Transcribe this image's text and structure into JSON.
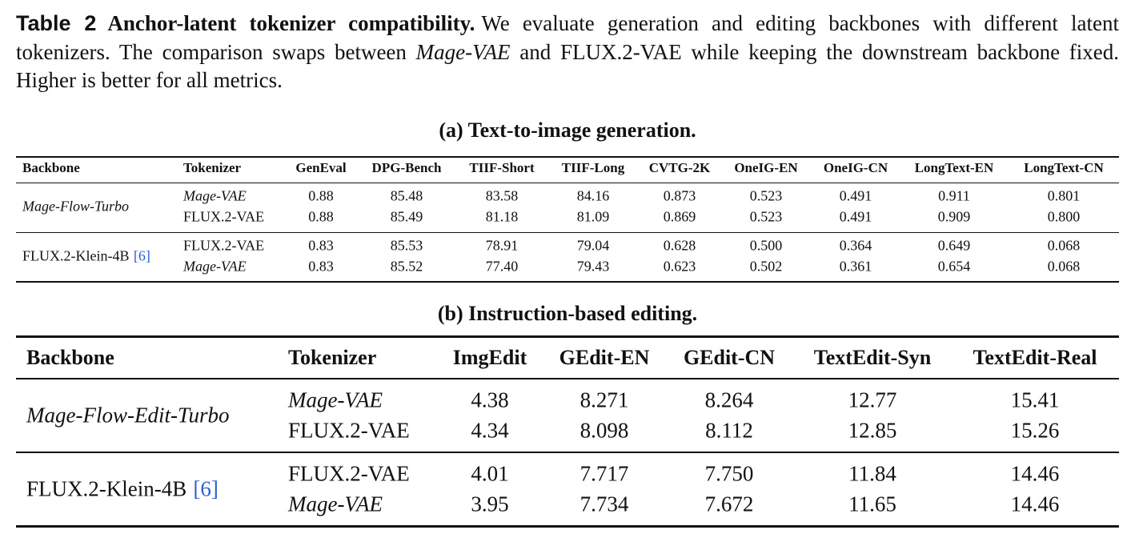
{
  "caption": {
    "label": "Table 2",
    "title": "Anchor-latent tokenizer compatibility.",
    "parts": [
      {
        "text": "We evaluate generation and editing backbones with different latent tokenizers. The comparison swaps between ",
        "italic": false
      },
      {
        "text": "Mage-VAE",
        "italic": true
      },
      {
        "text": " and FLUX.2-VAE while keeping the downstream backbone fixed. Higher is better for all metrics.",
        "italic": false
      }
    ]
  },
  "table_a": {
    "title": "(a) Text-to-image generation.",
    "header": [
      "Backbone",
      "Tokenizer",
      "GenEval",
      "DPG-Bench",
      "TIIF-Short",
      "TIIF-Long",
      "CVTG-2K",
      "OneIG-EN",
      "OneIG-CN",
      "LongText-EN",
      "LongText-CN"
    ],
    "groups": [
      {
        "backbone": "Mage-Flow-Turbo",
        "italic": true,
        "rows": [
          {
            "tokenizer": "Mage-VAE",
            "italic": true,
            "values": [
              "0.88",
              "85.48",
              "83.58",
              "84.16",
              "0.873",
              "0.523",
              "0.491",
              "0.911",
              "0.801"
            ]
          },
          {
            "tokenizer": "FLUX.2-VAE",
            "italic": false,
            "values": [
              "0.88",
              "85.49",
              "81.18",
              "81.09",
              "0.869",
              "0.523",
              "0.491",
              "0.909",
              "0.800"
            ]
          }
        ]
      },
      {
        "backbone": "FLUX.2-Klein-4B",
        "cite": "[6]",
        "italic": false,
        "rows": [
          {
            "tokenizer": "FLUX.2-VAE",
            "italic": false,
            "values": [
              "0.83",
              "85.53",
              "78.91",
              "79.04",
              "0.628",
              "0.500",
              "0.364",
              "0.649",
              "0.068"
            ]
          },
          {
            "tokenizer": "Mage-VAE",
            "italic": true,
            "values": [
              "0.83",
              "85.52",
              "77.40",
              "79.43",
              "0.623",
              "0.502",
              "0.361",
              "0.654",
              "0.068"
            ]
          }
        ]
      }
    ]
  },
  "table_b": {
    "title": "(b) Instruction-based editing.",
    "header": [
      "Backbone",
      "Tokenizer",
      "ImgEdit",
      "GEdit-EN",
      "GEdit-CN",
      "TextEdit-Syn",
      "TextEdit-Real"
    ],
    "groups": [
      {
        "backbone": "Mage-Flow-Edit-Turbo",
        "italic": true,
        "rows": [
          {
            "tokenizer": "Mage-VAE",
            "italic": true,
            "values": [
              "4.38",
              "8.271",
              "8.264",
              "12.77",
              "15.41"
            ]
          },
          {
            "tokenizer": "FLUX.2-VAE",
            "italic": false,
            "values": [
              "4.34",
              "8.098",
              "8.112",
              "12.85",
              "15.26"
            ]
          }
        ]
      },
      {
        "backbone": "FLUX.2-Klein-4B",
        "cite": "[6]",
        "italic": false,
        "rows": [
          {
            "tokenizer": "FLUX.2-VAE",
            "italic": false,
            "values": [
              "4.01",
              "7.717",
              "7.750",
              "11.84",
              "14.46"
            ]
          },
          {
            "tokenizer": "Mage-VAE",
            "italic": true,
            "values": [
              "3.95",
              "7.734",
              "7.672",
              "11.65",
              "14.46"
            ]
          }
        ]
      }
    ]
  }
}
